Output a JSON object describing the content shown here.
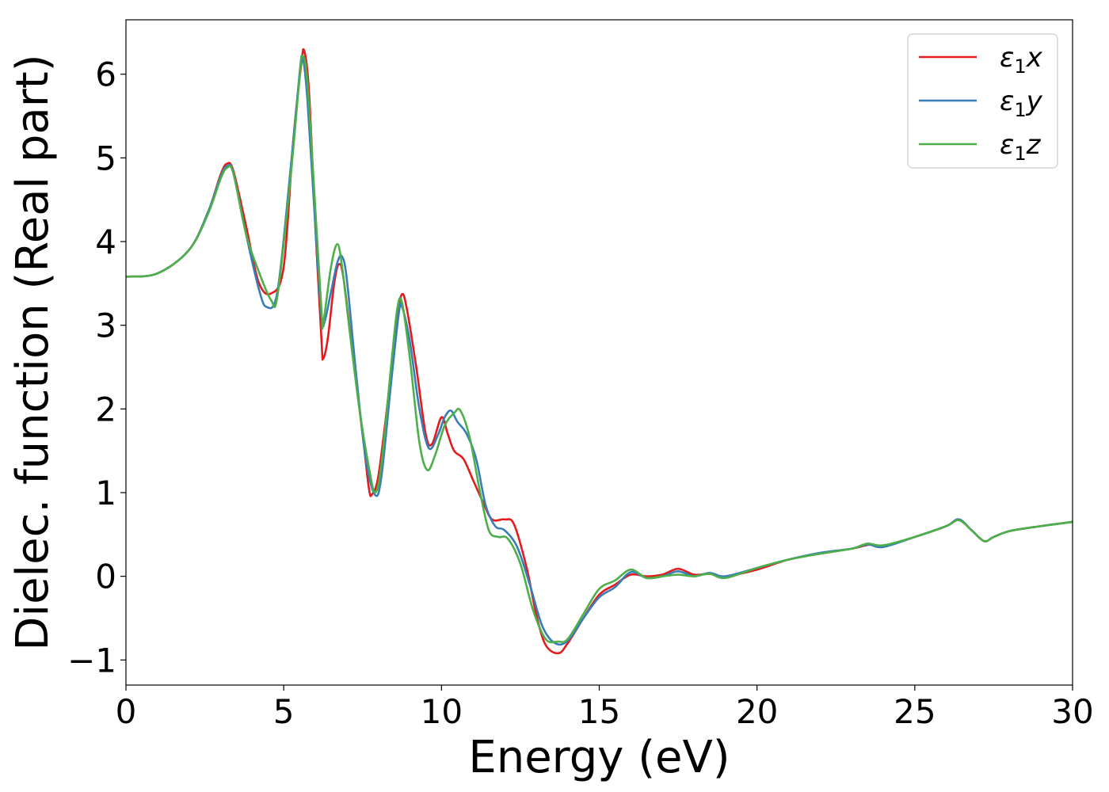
{
  "chart_data": {
    "type": "line",
    "xlabel": "Energy (eV)",
    "ylabel": "Dielec. function (Real part)",
    "xlim": [
      0,
      30
    ],
    "ylim": [
      -1.3,
      6.65
    ],
    "x_ticks": [
      0,
      5,
      10,
      15,
      20,
      25,
      30
    ],
    "y_ticks": [
      -1,
      0,
      1,
      2,
      3,
      4,
      5,
      6
    ],
    "x_tick_labels": [
      "0",
      "5",
      "10",
      "15",
      "20",
      "25",
      "30"
    ],
    "y_tick_labels": [
      "−1",
      "0",
      "1",
      "2",
      "3",
      "4",
      "5",
      "6"
    ],
    "grid": false,
    "legend_position": "top-right",
    "series": [
      {
        "name": "ε1x",
        "label_base": "ε",
        "label_sub": "1",
        "label_suffix": "x",
        "color": "#e41a1c",
        "points": [
          [
            0,
            3.58
          ],
          [
            1,
            3.62
          ],
          [
            2,
            3.9
          ],
          [
            2.6,
            4.35
          ],
          [
            3.0,
            4.8
          ],
          [
            3.2,
            4.93
          ],
          [
            3.4,
            4.85
          ],
          [
            3.8,
            4.2
          ],
          [
            4.2,
            3.52
          ],
          [
            4.6,
            3.38
          ],
          [
            5.0,
            3.7
          ],
          [
            5.3,
            5.2
          ],
          [
            5.55,
            6.1
          ],
          [
            5.65,
            6.28
          ],
          [
            5.8,
            5.8
          ],
          [
            6.0,
            4.2
          ],
          [
            6.2,
            2.8
          ],
          [
            6.25,
            2.6
          ],
          [
            6.4,
            2.85
          ],
          [
            6.6,
            3.5
          ],
          [
            6.75,
            3.73
          ],
          [
            6.9,
            3.55
          ],
          [
            7.2,
            2.6
          ],
          [
            7.5,
            1.7
          ],
          [
            7.7,
            1.05
          ],
          [
            7.8,
            0.98
          ],
          [
            8.0,
            1.2
          ],
          [
            8.3,
            2.1
          ],
          [
            8.6,
            3.1
          ],
          [
            8.75,
            3.37
          ],
          [
            8.9,
            3.2
          ],
          [
            9.2,
            2.5
          ],
          [
            9.5,
            1.7
          ],
          [
            9.7,
            1.58
          ],
          [
            10.0,
            1.9
          ],
          [
            10.2,
            1.7
          ],
          [
            10.4,
            1.5
          ],
          [
            10.7,
            1.4
          ],
          [
            11.0,
            1.15
          ],
          [
            11.3,
            0.9
          ],
          [
            11.6,
            0.68
          ],
          [
            12.0,
            0.68
          ],
          [
            12.3,
            0.62
          ],
          [
            12.7,
            0.1
          ],
          [
            13.0,
            -0.45
          ],
          [
            13.3,
            -0.82
          ],
          [
            13.7,
            -0.92
          ],
          [
            14.0,
            -0.8
          ],
          [
            14.5,
            -0.5
          ],
          [
            15.0,
            -0.22
          ],
          [
            15.5,
            -0.1
          ],
          [
            16.0,
            0.02
          ],
          [
            16.5,
            0.0
          ],
          [
            17.0,
            0.02
          ],
          [
            17.5,
            0.09
          ],
          [
            18.0,
            0.02
          ],
          [
            18.5,
            0.03
          ],
          [
            19.0,
            0.0
          ],
          [
            20.0,
            0.08
          ],
          [
            21.0,
            0.2
          ],
          [
            22.0,
            0.27
          ],
          [
            23.0,
            0.33
          ],
          [
            23.6,
            0.38
          ],
          [
            24.0,
            0.36
          ],
          [
            25.0,
            0.47
          ],
          [
            26.0,
            0.6
          ],
          [
            26.4,
            0.68
          ],
          [
            26.8,
            0.55
          ],
          [
            27.2,
            0.42
          ],
          [
            27.5,
            0.47
          ],
          [
            28.0,
            0.54
          ],
          [
            29.0,
            0.6
          ],
          [
            30.0,
            0.65
          ]
        ]
      },
      {
        "name": "ε1y",
        "label_base": "ε",
        "label_sub": "1",
        "label_suffix": "y",
        "color": "#377eb8",
        "points": [
          [
            0,
            3.58
          ],
          [
            1,
            3.62
          ],
          [
            2,
            3.9
          ],
          [
            2.6,
            4.35
          ],
          [
            3.0,
            4.78
          ],
          [
            3.2,
            4.9
          ],
          [
            3.4,
            4.83
          ],
          [
            3.8,
            4.1
          ],
          [
            4.2,
            3.45
          ],
          [
            4.45,
            3.22
          ],
          [
            4.8,
            3.4
          ],
          [
            5.2,
            4.8
          ],
          [
            5.5,
            6.0
          ],
          [
            5.6,
            6.2
          ],
          [
            5.75,
            5.7
          ],
          [
            6.0,
            4.2
          ],
          [
            6.2,
            3.1
          ],
          [
            6.3,
            3.05
          ],
          [
            6.5,
            3.4
          ],
          [
            6.7,
            3.75
          ],
          [
            6.85,
            3.82
          ],
          [
            7.0,
            3.55
          ],
          [
            7.3,
            2.4
          ],
          [
            7.6,
            1.4
          ],
          [
            7.9,
            0.97
          ],
          [
            8.1,
            1.2
          ],
          [
            8.4,
            2.3
          ],
          [
            8.65,
            3.15
          ],
          [
            8.75,
            3.22
          ],
          [
            9.0,
            2.8
          ],
          [
            9.3,
            2.0
          ],
          [
            9.6,
            1.53
          ],
          [
            9.9,
            1.7
          ],
          [
            10.1,
            1.9
          ],
          [
            10.3,
            1.98
          ],
          [
            10.5,
            1.85
          ],
          [
            10.8,
            1.7
          ],
          [
            11.1,
            1.4
          ],
          [
            11.4,
            0.85
          ],
          [
            11.7,
            0.6
          ],
          [
            12.0,
            0.55
          ],
          [
            12.4,
            0.35
          ],
          [
            12.8,
            -0.1
          ],
          [
            13.2,
            -0.6
          ],
          [
            13.6,
            -0.8
          ],
          [
            14.0,
            -0.77
          ],
          [
            14.5,
            -0.5
          ],
          [
            15.0,
            -0.25
          ],
          [
            15.5,
            -0.13
          ],
          [
            16.0,
            0.05
          ],
          [
            16.5,
            -0.02
          ],
          [
            17.0,
            0.0
          ],
          [
            17.5,
            0.06
          ],
          [
            18.0,
            0.0
          ],
          [
            18.5,
            0.04
          ],
          [
            19.0,
            0.0
          ],
          [
            20.0,
            0.1
          ],
          [
            21.0,
            0.2
          ],
          [
            22.0,
            0.28
          ],
          [
            23.0,
            0.33
          ],
          [
            23.5,
            0.38
          ],
          [
            24.0,
            0.35
          ],
          [
            25.0,
            0.47
          ],
          [
            26.0,
            0.6
          ],
          [
            26.4,
            0.68
          ],
          [
            26.8,
            0.55
          ],
          [
            27.2,
            0.42
          ],
          [
            27.5,
            0.47
          ],
          [
            28.0,
            0.54
          ],
          [
            29.0,
            0.6
          ],
          [
            30.0,
            0.65
          ]
        ]
      },
      {
        "name": "ε1z",
        "label_base": "ε",
        "label_sub": "1",
        "label_suffix": "z",
        "color": "#4daf4a",
        "points": [
          [
            0,
            3.58
          ],
          [
            1,
            3.62
          ],
          [
            2,
            3.9
          ],
          [
            2.6,
            4.33
          ],
          [
            3.0,
            4.75
          ],
          [
            3.2,
            4.88
          ],
          [
            3.4,
            4.82
          ],
          [
            3.8,
            4.1
          ],
          [
            4.2,
            3.65
          ],
          [
            4.6,
            3.3
          ],
          [
            4.8,
            3.35
          ],
          [
            5.2,
            4.7
          ],
          [
            5.5,
            5.95
          ],
          [
            5.6,
            6.22
          ],
          [
            5.75,
            5.9
          ],
          [
            6.0,
            4.4
          ],
          [
            6.2,
            3.15
          ],
          [
            6.25,
            3.02
          ],
          [
            6.5,
            3.7
          ],
          [
            6.7,
            3.97
          ],
          [
            6.85,
            3.7
          ],
          [
            7.1,
            2.9
          ],
          [
            7.4,
            2.0
          ],
          [
            7.7,
            1.3
          ],
          [
            7.9,
            1.0
          ],
          [
            8.1,
            1.35
          ],
          [
            8.4,
            2.5
          ],
          [
            8.6,
            3.2
          ],
          [
            8.75,
            3.27
          ],
          [
            9.0,
            2.6
          ],
          [
            9.3,
            1.6
          ],
          [
            9.55,
            1.27
          ],
          [
            9.8,
            1.45
          ],
          [
            10.1,
            1.8
          ],
          [
            10.4,
            1.95
          ],
          [
            10.6,
            1.98
          ],
          [
            10.9,
            1.65
          ],
          [
            11.2,
            1.05
          ],
          [
            11.5,
            0.55
          ],
          [
            11.8,
            0.47
          ],
          [
            12.1,
            0.45
          ],
          [
            12.5,
            0.15
          ],
          [
            12.9,
            -0.4
          ],
          [
            13.3,
            -0.75
          ],
          [
            13.7,
            -0.78
          ],
          [
            14.0,
            -0.75
          ],
          [
            14.5,
            -0.45
          ],
          [
            15.0,
            -0.15
          ],
          [
            15.5,
            -0.05
          ],
          [
            16.0,
            0.08
          ],
          [
            16.5,
            -0.02
          ],
          [
            17.0,
            0.0
          ],
          [
            17.5,
            0.02
          ],
          [
            18.0,
            0.0
          ],
          [
            18.5,
            0.03
          ],
          [
            19.0,
            -0.02
          ],
          [
            20.0,
            0.1
          ],
          [
            21.0,
            0.2
          ],
          [
            22.0,
            0.27
          ],
          [
            23.0,
            0.33
          ],
          [
            23.5,
            0.39
          ],
          [
            24.0,
            0.37
          ],
          [
            25.0,
            0.47
          ],
          [
            26.0,
            0.6
          ],
          [
            26.4,
            0.67
          ],
          [
            26.8,
            0.55
          ],
          [
            27.2,
            0.42
          ],
          [
            27.5,
            0.47
          ],
          [
            28.0,
            0.54
          ],
          [
            29.0,
            0.6
          ],
          [
            30.0,
            0.65
          ]
        ]
      }
    ]
  }
}
